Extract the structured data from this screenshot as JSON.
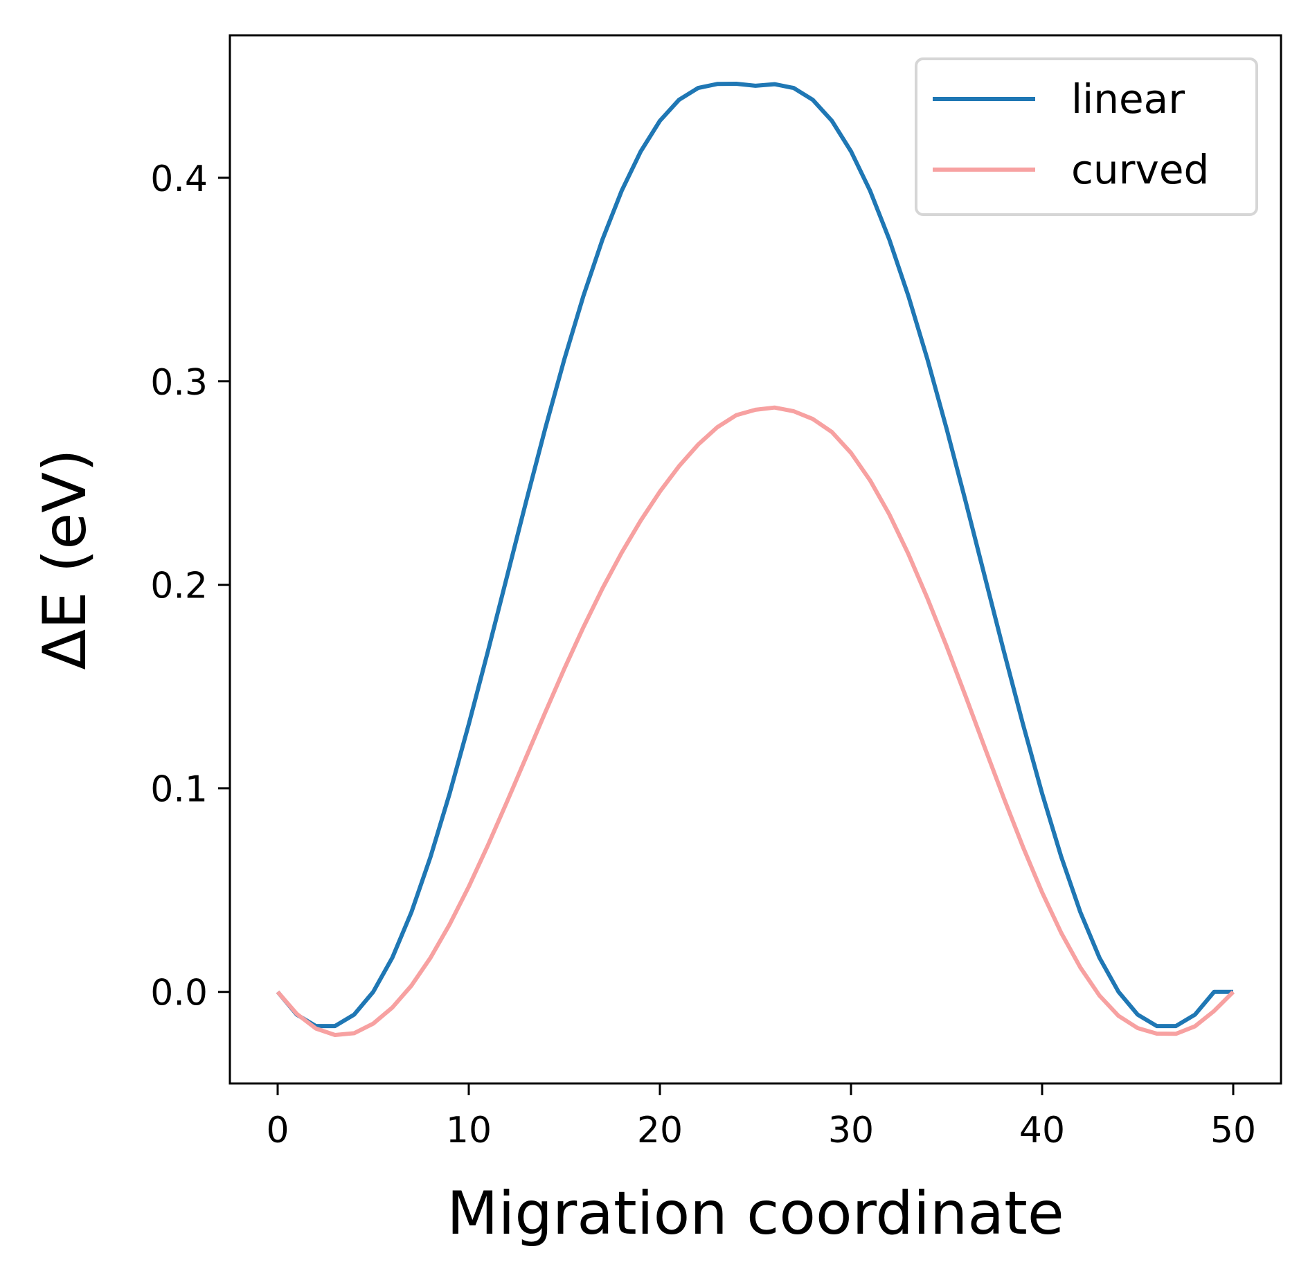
{
  "chart_data": {
    "type": "line",
    "title": "",
    "xlabel": "Migration coordinate",
    "ylabel": "ΔE (eV)",
    "xlim": [
      -2.5,
      52.5
    ],
    "ylim": [
      -0.045,
      0.47
    ],
    "xticks": [
      0,
      10,
      20,
      30,
      40,
      50
    ],
    "xtick_labels": [
      "0",
      "10",
      "20",
      "30",
      "40",
      "50"
    ],
    "yticks": [
      0.0,
      0.1,
      0.2,
      0.3,
      0.4
    ],
    "ytick_labels": [
      "0.0",
      "0.1",
      "0.2",
      "0.3",
      "0.4"
    ],
    "grid": false,
    "legend_position": "top-right",
    "x": [
      0,
      1,
      2,
      3,
      4,
      5,
      6,
      7,
      8,
      9,
      10,
      11,
      12,
      13,
      14,
      15,
      16,
      17,
      18,
      19,
      20,
      21,
      22,
      23,
      24,
      25,
      26,
      27,
      28,
      29,
      30,
      31,
      32,
      33,
      34,
      35,
      36,
      37,
      38,
      39,
      40,
      41,
      42,
      43,
      44,
      45,
      46,
      47,
      48,
      49,
      50
    ],
    "series": [
      {
        "name": "linear",
        "color": "#1f77b4",
        "values": [
          0.0,
          -0.0112,
          -0.0168,
          -0.0168,
          -0.0112,
          0.0,
          0.0168,
          0.0392,
          0.0664,
          0.0975,
          0.1315,
          0.1673,
          0.2041,
          0.2409,
          0.2768,
          0.3108,
          0.342,
          0.3698,
          0.3936,
          0.413,
          0.428,
          0.4383,
          0.4441,
          0.4461,
          0.4462,
          0.4452,
          0.446,
          0.4441,
          0.4383,
          0.428,
          0.413,
          0.3936,
          0.3698,
          0.342,
          0.3108,
          0.2768,
          0.2409,
          0.2041,
          0.1673,
          0.1315,
          0.0975,
          0.0664,
          0.0392,
          0.0168,
          0.0,
          -0.0112,
          -0.0168,
          -0.0168,
          -0.0112,
          0.0,
          0.0
        ]
      },
      {
        "name": "curved",
        "color": "#f7a1a1",
        "values": [
          0.0,
          -0.0108,
          -0.018,
          -0.0212,
          -0.0203,
          -0.0156,
          -0.0077,
          0.0031,
          0.0168,
          0.0332,
          0.0517,
          0.072,
          0.0934,
          0.1153,
          0.1373,
          0.1588,
          0.1792,
          0.1983,
          0.2158,
          0.2316,
          0.2458,
          0.2583,
          0.2689,
          0.2774,
          0.2834,
          0.286,
          0.2871,
          0.2853,
          0.2815,
          0.2751,
          0.2648,
          0.2513,
          0.2347,
          0.2152,
          0.1934,
          0.1699,
          0.1452,
          0.12,
          0.0951,
          0.0712,
          0.0489,
          0.029,
          0.012,
          -0.0018,
          -0.0118,
          -0.0178,
          -0.0205,
          -0.0206,
          -0.0169,
          -0.0094,
          0.0
        ]
      }
    ]
  }
}
